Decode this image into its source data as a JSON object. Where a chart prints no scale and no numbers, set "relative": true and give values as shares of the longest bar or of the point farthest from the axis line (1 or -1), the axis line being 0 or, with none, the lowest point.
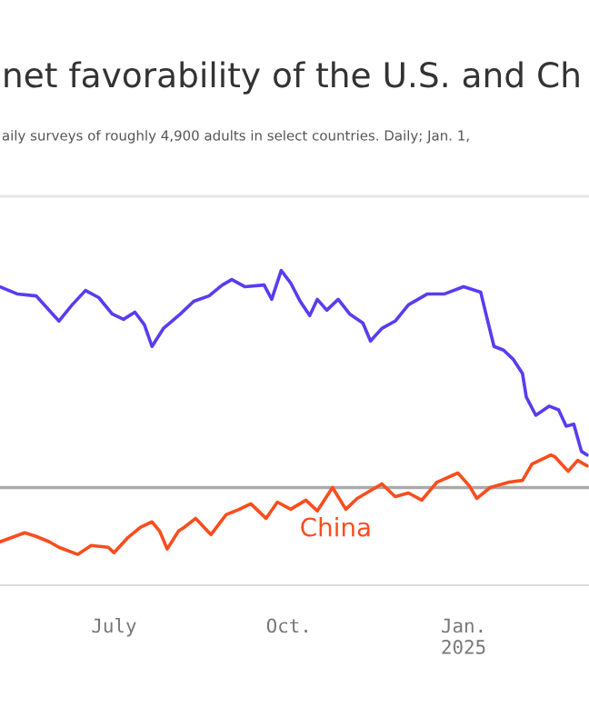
{
  "chart_data": {
    "type": "line",
    "title": "net favorability of the U.S. and Ch",
    "subtitle": "aily surveys of roughly 4,900 adults in select countries. Daily; Jan. 1,",
    "relative": true,
    "xlim": [
      "2024-05-02",
      "2025-03-08"
    ],
    "xticks": [
      {
        "value": "2024-07-01",
        "label": "July"
      },
      {
        "value": "2024-10-01",
        "label": "Oct."
      },
      {
        "value": "2025-01-01",
        "label": "Jan.\n2025"
      }
    ],
    "tick_labels": "x",
    "series": [
      {
        "color": "#5a3cf0",
        "x": [
          "2024-05-02",
          "2024-05-11",
          "2024-05-21",
          "2024-06-02",
          "2024-06-09",
          "2024-06-16",
          "2024-06-23",
          "2024-06-30",
          "2024-07-06",
          "2024-07-12",
          "2024-07-17",
          "2024-07-21",
          "2024-07-27",
          "2024-08-05",
          "2024-08-12",
          "2024-08-20",
          "2024-08-27",
          "2024-09-01",
          "2024-09-08",
          "2024-09-18",
          "2024-09-22",
          "2024-09-27",
          "2024-10-02",
          "2024-10-07",
          "2024-10-12",
          "2024-10-16",
          "2024-10-21",
          "2024-10-27",
          "2024-11-02",
          "2024-11-09",
          "2024-11-13",
          "2024-11-19",
          "2024-11-26",
          "2024-12-03",
          "2024-12-08",
          "2024-12-13",
          "2024-12-22",
          "2025-01-01",
          "2025-01-10",
          "2025-01-13",
          "2025-01-17",
          "2025-01-22",
          "2025-01-27",
          "2025-02-01",
          "2025-02-03",
          "2025-02-08",
          "2025-02-15",
          "2025-02-20",
          "2025-02-24",
          "2025-02-28",
          "2025-03-04",
          "2025-03-07"
        ],
        "values": [
          0.925,
          0.892,
          0.883,
          0.767,
          0.842,
          0.908,
          0.875,
          0.8,
          0.775,
          0.808,
          0.75,
          0.65,
          0.733,
          0.8,
          0.858,
          0.883,
          0.933,
          0.958,
          0.925,
          0.933,
          0.867,
          1,
          0.942,
          0.858,
          0.792,
          0.867,
          0.817,
          0.867,
          0.8,
          0.758,
          0.675,
          0.733,
          0.767,
          0.842,
          0.867,
          0.892,
          0.892,
          0.925,
          0.9,
          0.792,
          0.65,
          0.633,
          0.592,
          0.525,
          0.417,
          0.333,
          0.375,
          0.358,
          0.283,
          0.292,
          0.167,
          0.15
        ]
      },
      {
        "name": "China",
        "color": "#fa4d1e",
        "x": [
          "2024-05-02",
          "2024-05-15",
          "2024-05-21",
          "2024-05-28",
          "2024-06-02",
          "2024-06-12",
          "2024-06-19",
          "2024-06-28",
          "2024-07-01",
          "2024-07-08",
          "2024-07-15",
          "2024-07-21",
          "2024-07-25",
          "2024-07-29",
          "2024-08-04",
          "2024-08-07",
          "2024-08-13",
          "2024-08-21",
          "2024-08-29",
          "2024-09-05",
          "2024-09-11",
          "2024-09-19",
          "2024-09-25",
          "2024-10-02",
          "2024-10-10",
          "2024-10-16",
          "2024-10-24",
          "2024-10-31",
          "2024-11-06",
          "2024-11-19",
          "2024-11-26",
          "2024-12-03",
          "2024-12-10",
          "2024-12-18",
          "2024-12-29",
          "2025-01-04",
          "2025-01-08",
          "2025-01-15",
          "2025-01-25",
          "2025-02-01",
          "2025-02-06",
          "2025-02-16",
          "2025-02-18",
          "2025-02-25",
          "2025-03-02",
          "2025-03-07"
        ],
        "values": [
          -0.25,
          -0.208,
          -0.225,
          -0.25,
          -0.275,
          -0.308,
          -0.267,
          -0.275,
          -0.3,
          -0.233,
          -0.183,
          -0.158,
          -0.2,
          -0.283,
          -0.2,
          -0.183,
          -0.142,
          -0.217,
          -0.125,
          -0.1,
          -0.075,
          -0.142,
          -0.067,
          -0.1,
          -0.058,
          -0.108,
          0,
          -0.1,
          -0.05,
          0.017,
          -0.042,
          -0.025,
          -0.058,
          0.025,
          0.067,
          0.008,
          -0.05,
          0,
          0.025,
          0.033,
          0.108,
          0.15,
          0.142,
          0.075,
          0.125,
          0.1
        ]
      }
    ]
  }
}
